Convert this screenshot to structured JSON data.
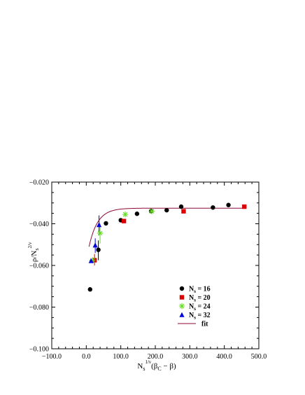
{
  "chart_data": {
    "type": "scatter",
    "title": "",
    "xlabel": {
      "main": "N",
      "sub": "s",
      "sup": "1/ν",
      "rest": "(β",
      "sub2": "C",
      "rest2": " − β)"
    },
    "ylabel": {
      "main": "ρ/N",
      "sub": "s",
      "sup": "2/ν"
    },
    "xlim": [
      -100,
      500
    ],
    "ylim": [
      -0.1,
      -0.02
    ],
    "xticks": [
      -100,
      0,
      100,
      200,
      300,
      400,
      500
    ],
    "xtick_labels": [
      "−100.0",
      "0.0",
      "100.0",
      "200.0",
      "300.0",
      "400.0",
      "500.0"
    ],
    "yticks": [
      -0.1,
      -0.08,
      -0.06,
      -0.04,
      -0.02
    ],
    "ytick_labels": [
      "−0.100",
      "−0.080",
      "−0.060",
      "−0.040",
      "−0.020"
    ],
    "grid": false,
    "legend_position": "bottom-right",
    "series": [
      {
        "name": "N",
        "legend_sub": "s",
        "legend_value": " = 16",
        "marker": "circle",
        "color": "#000000",
        "points": [
          {
            "x": 11,
            "y": -0.0715
          },
          {
            "x": 35,
            "y": -0.0525
          },
          {
            "x": 57,
            "y": -0.0398
          },
          {
            "x": 100,
            "y": -0.0383
          },
          {
            "x": 147,
            "y": -0.0352
          },
          {
            "x": 188,
            "y": -0.0339
          },
          {
            "x": 233,
            "y": -0.0335
          },
          {
            "x": 275,
            "y": -0.0318
          },
          {
            "x": 367,
            "y": -0.0322
          },
          {
            "x": 412,
            "y": -0.031
          }
        ]
      },
      {
        "name": "N",
        "legend_sub": "s",
        "legend_value": " = 20",
        "marker": "square",
        "color": "#dd0000",
        "points": [
          {
            "x": 24,
            "y": -0.0575
          },
          {
            "x": 109,
            "y": -0.0387
          },
          {
            "x": 282,
            "y": -0.034
          },
          {
            "x": 458,
            "y": -0.0318
          }
        ]
      },
      {
        "name": "N",
        "legend_sub": "s",
        "legend_value": " = 24",
        "marker": "star",
        "color": "#66dd22",
        "points": [
          {
            "x": 18,
            "y": -0.0575
          },
          {
            "x": 40,
            "y": -0.0445
          },
          {
            "x": 113,
            "y": -0.0355
          },
          {
            "x": 190,
            "y": -0.034
          }
        ]
      },
      {
        "name": "N",
        "legend_sub": "s",
        "legend_value": " = 32",
        "marker": "triangle",
        "color": "#0000dd",
        "points": [
          {
            "x": 14,
            "y": -0.0578
          },
          {
            "x": 26,
            "y": -0.0503
          },
          {
            "x": 37,
            "y": -0.0405
          }
        ]
      }
    ],
    "error_bars": [
      {
        "x": 35,
        "y_low": -0.0575,
        "y_high": -0.048,
        "color": "#000000"
      },
      {
        "x": 24,
        "y_low": -0.06,
        "y_high": -0.0545,
        "color": "#dd0000"
      },
      {
        "x": 37,
        "y_low": -0.0455,
        "y_high": -0.036,
        "color": "#0000dd"
      },
      {
        "x": 40,
        "y_low": -0.0495,
        "y_high": -0.04,
        "color": "#66dd22"
      },
      {
        "x": 26,
        "y_low": -0.054,
        "y_high": -0.047,
        "color": "#0000dd"
      }
    ],
    "fit": {
      "name": "fit",
      "color": "#8b0a3a",
      "a": -0.0325,
      "b": -0.0185,
      "c": 25.0,
      "x_start": 8,
      "x_end": 460
    }
  }
}
